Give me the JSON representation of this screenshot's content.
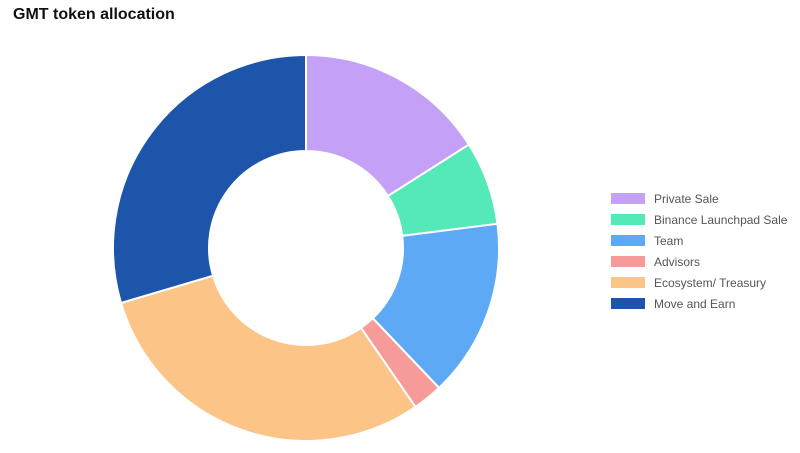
{
  "chart_data": {
    "type": "pie",
    "title": "GMT token allocation",
    "variant": "donut",
    "legend_position": "right",
    "categories": [
      "Private Sale",
      "Binance Launchpad Sale",
      "Team",
      "Advisors",
      "Ecosystem/ Treasury",
      "Move and Earn"
    ],
    "values": [
      16,
      7,
      14.9,
      2.5,
      30,
      29.6
    ],
    "unit": "%",
    "colors": [
      "#c4a1f6",
      "#55e8b8",
      "#5ea9f5",
      "#f69a9a",
      "#fdc488",
      "#1c55a9"
    ]
  }
}
